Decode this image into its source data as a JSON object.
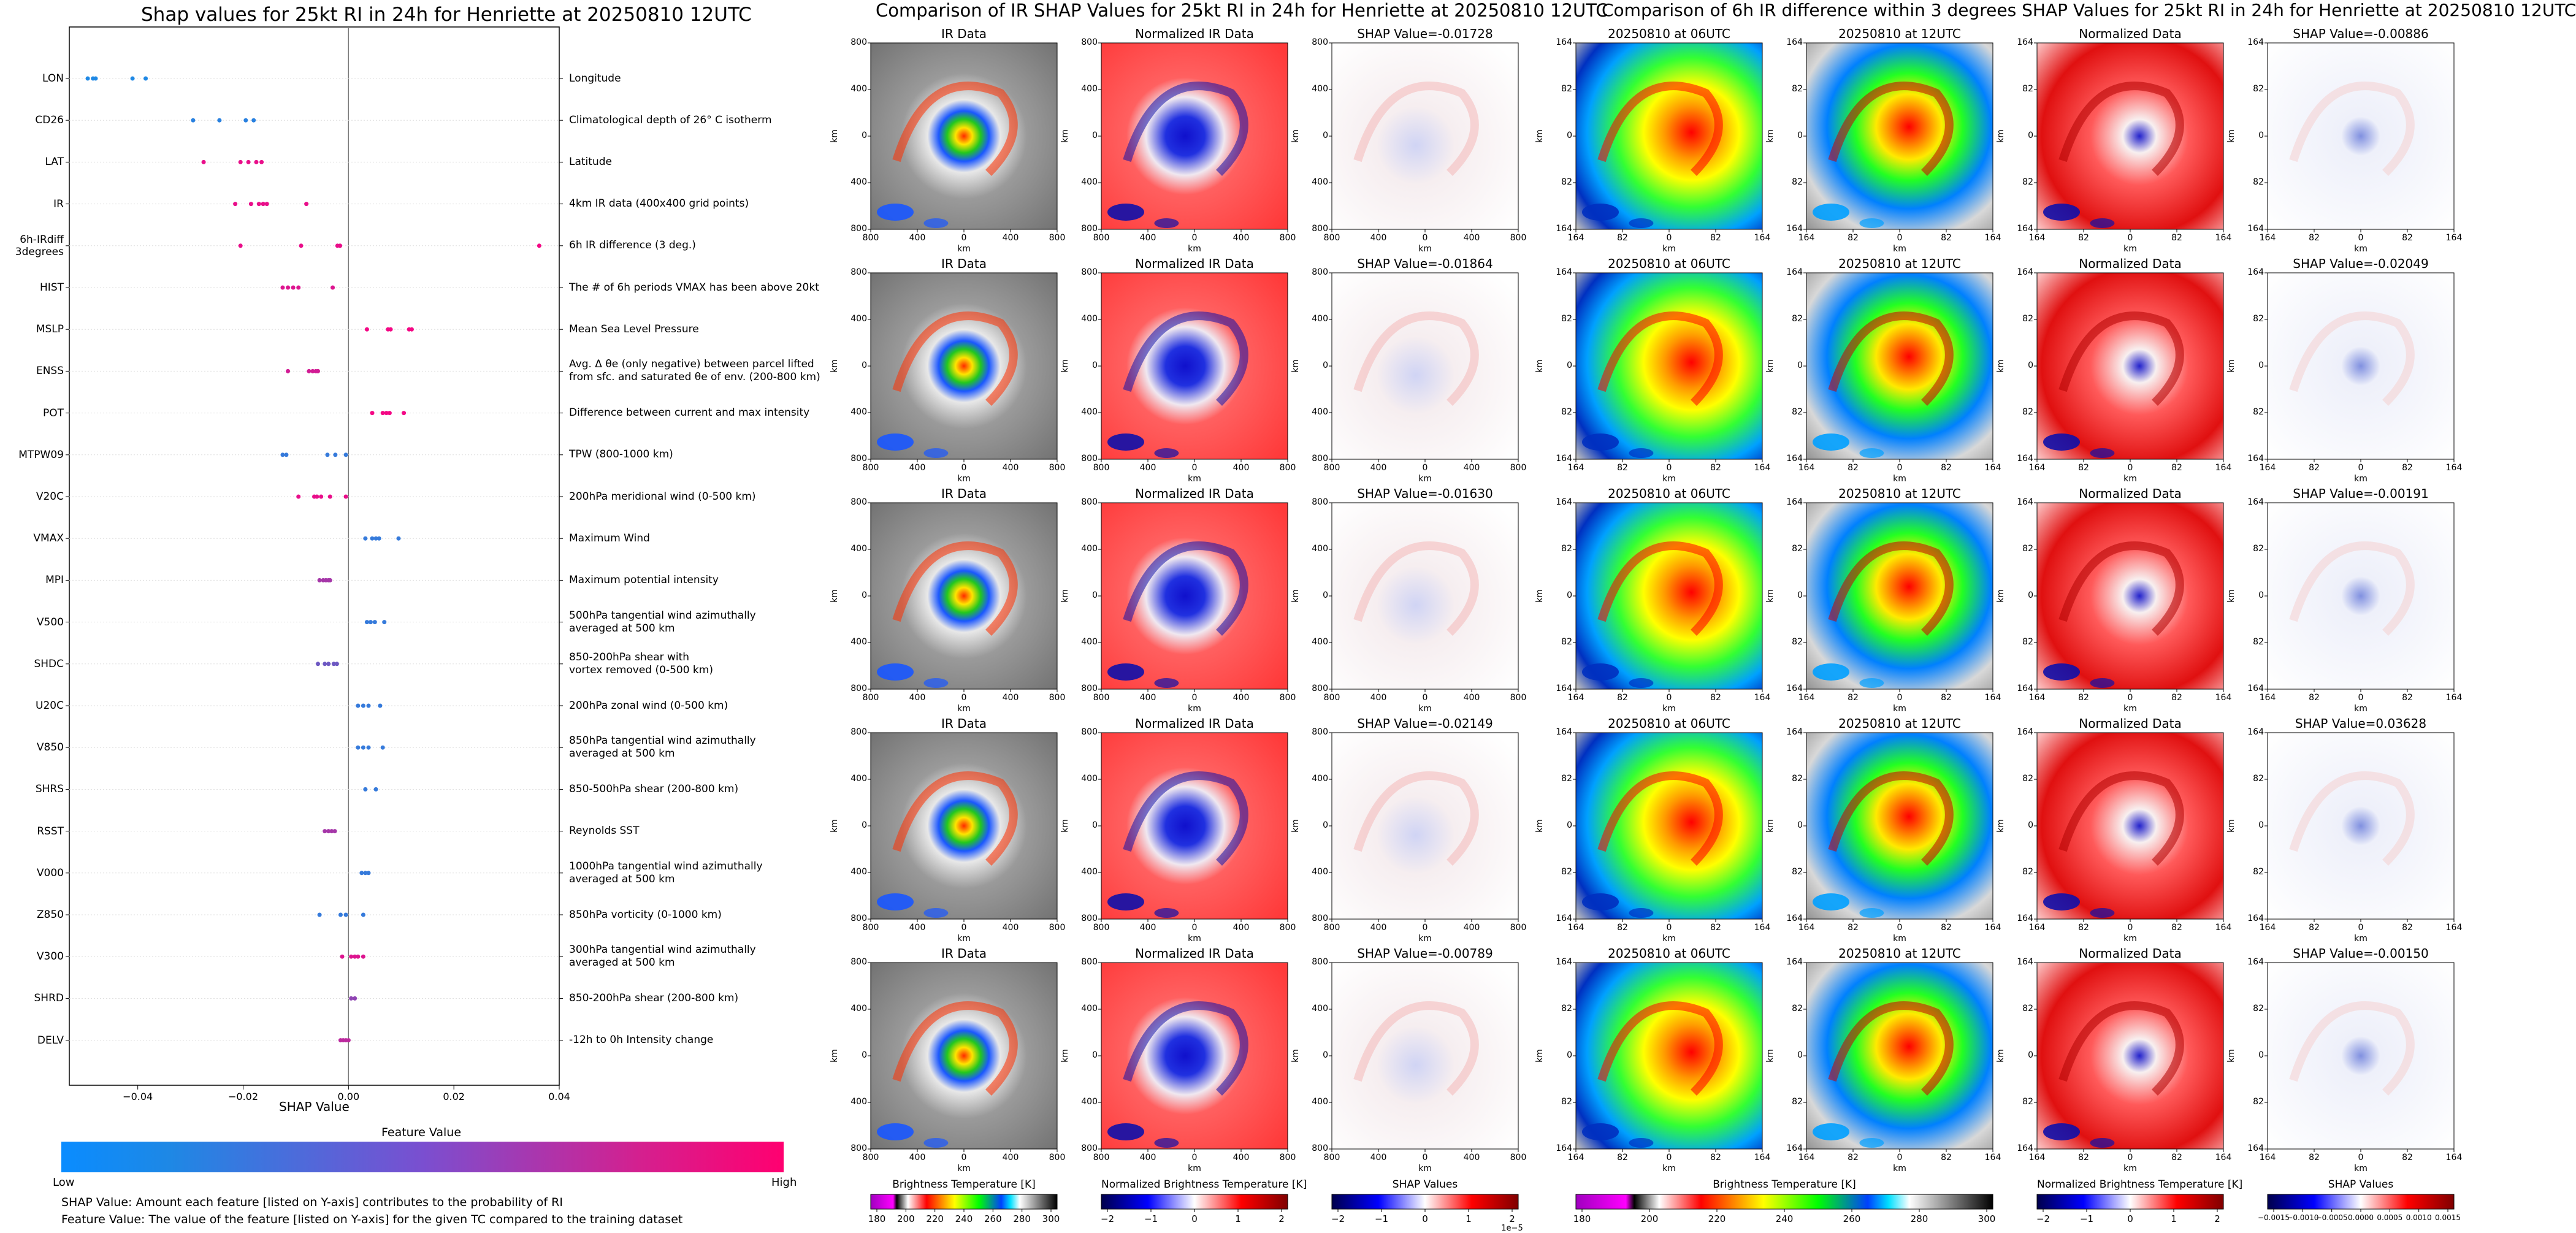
{
  "colors": {
    "low": "#1e88e5",
    "high": "#ff0080"
  },
  "left": {
    "title": "Shap values for 25kt RI in 24h for Henriette at 20250810 12UTC",
    "xlabel": "SHAP Value",
    "xticks": [
      "−0.04",
      "−0.02",
      "0.00",
      "0.02",
      "0.04"
    ],
    "colorbar_title": "Feature Value",
    "colorbar_low": "Low",
    "colorbar_high": "High",
    "notes": [
      "SHAP Value: Amount each feature [listed on Y-axis] contributes to the probability of RI",
      "Feature Value: The value of the feature [listed on Y-axis] for the given TC compared to the training dataset"
    ]
  },
  "mid": {
    "title": "Comparison of IR SHAP Values for 25kt RI in 24h for Henriette at 20250810 12UTC",
    "col_titles": [
      "IR Data",
      "Normalized IR Data"
    ],
    "shap_titles": [
      "SHAP Value=-0.01728",
      "SHAP Value=-0.01864",
      "SHAP Value=-0.01630",
      "SHAP Value=-0.02149",
      "SHAP Value=-0.00789"
    ],
    "yticks": [
      "800",
      "400",
      "0",
      "400",
      "800"
    ],
    "xticks": [
      "800",
      "400",
      "0",
      "400",
      "800"
    ],
    "axis_label": "km",
    "cb1": {
      "title": "Brightness Temperature [K]",
      "ticks": [
        "180",
        "200",
        "220",
        "240",
        "260",
        "280",
        "300"
      ]
    },
    "cb2": {
      "title": "Normalized Brightness Temperature [K]",
      "ticks": [
        "−2",
        "−1",
        "0",
        "1",
        "2"
      ]
    },
    "cb3": {
      "title": "SHAP Values",
      "ticks": [
        "−2",
        "−1",
        "0",
        "1",
        "2"
      ],
      "exponent": "1e−5"
    }
  },
  "right": {
    "title": "Comparison of 6h IR difference within 3 degrees SHAP Values for 25kt RI in 24h for Henriette at 20250810 12UTC",
    "col_titles": [
      "20250810 at 06UTC",
      "20250810 at 12UTC",
      "Normalized Data"
    ],
    "shap_titles": [
      "SHAP Value=-0.00886",
      "SHAP Value=-0.02049",
      "SHAP Value=-0.00191",
      "SHAP Value=0.03628",
      "SHAP Value=-0.00150"
    ],
    "yticks": [
      "164",
      "82",
      "0",
      "82",
      "164"
    ],
    "xticks": [
      "164",
      "82",
      "0",
      "82",
      "164"
    ],
    "axis_label": "km",
    "cb1": {
      "title": "Brightness Temperature [K]",
      "ticks": [
        "180",
        "200",
        "220",
        "240",
        "260",
        "280",
        "300"
      ]
    },
    "cb2": {
      "title": "Normalized Brightness Temperature [K]",
      "ticks": [
        "−2",
        "−1",
        "0",
        "1",
        "2"
      ]
    },
    "cb3": {
      "title": "SHAP Values",
      "ticks": [
        "−0.0015",
        "−0.0010",
        "−0.0005",
        "0.0000",
        "0.0005",
        "0.0010",
        "0.0015"
      ]
    }
  },
  "chart_data": {
    "type": "scatter",
    "title": "Shap values for 25kt RI in 24h for Henriette at 20250810 12UTC",
    "xlabel": "SHAP Value",
    "xlim": [
      -0.053,
      0.04
    ],
    "features": [
      {
        "name": "LON",
        "desc": "Longitude",
        "points": [
          [
            -0.0495,
            0.0
          ],
          [
            -0.0485,
            0.0
          ],
          [
            -0.048,
            0.0
          ],
          [
            -0.041,
            0.0
          ],
          [
            -0.0385,
            0.0
          ]
        ]
      },
      {
        "name": "CD26",
        "desc": "Climatological depth of 26° C isotherm",
        "points": [
          [
            -0.0295,
            0.05
          ],
          [
            -0.0245,
            0.05
          ],
          [
            -0.0195,
            0.05
          ],
          [
            -0.018,
            0.05
          ]
        ]
      },
      {
        "name": "LAT",
        "desc": "Latitude",
        "points": [
          [
            -0.0275,
            0.9
          ],
          [
            -0.0205,
            0.9
          ],
          [
            -0.019,
            0.9
          ],
          [
            -0.0175,
            0.9
          ],
          [
            -0.0165,
            0.9
          ]
        ]
      },
      {
        "name": "IR",
        "desc": "4km IR data (400x400 grid points)",
        "points": [
          [
            -0.0215,
            0.9
          ],
          [
            -0.0185,
            0.9
          ],
          [
            -0.017,
            0.9
          ],
          [
            -0.0162,
            0.9
          ],
          [
            -0.0155,
            0.9
          ],
          [
            -0.008,
            0.9
          ]
        ]
      },
      {
        "name": "6h-IRdiff\n3degrees",
        "desc": "6h IR difference (3 deg.)",
        "points": [
          [
            -0.0205,
            0.9
          ],
          [
            -0.009,
            0.9
          ],
          [
            -0.0021,
            0.9
          ],
          [
            -0.0016,
            0.9
          ],
          [
            0.0362,
            0.95
          ]
        ]
      },
      {
        "name": "HIST",
        "desc": "The # of 6h periods VMAX has been above 20kt",
        "points": [
          [
            -0.0125,
            0.85
          ],
          [
            -0.0115,
            0.85
          ],
          [
            -0.0105,
            0.85
          ],
          [
            -0.0095,
            0.85
          ],
          [
            -0.003,
            0.85
          ]
        ]
      },
      {
        "name": "MSLP",
        "desc": "Mean Sea Level Pressure",
        "points": [
          [
            0.0035,
            0.95
          ],
          [
            0.0075,
            0.95
          ],
          [
            0.008,
            0.95
          ],
          [
            0.0115,
            0.95
          ],
          [
            0.012,
            0.95
          ]
        ]
      },
      {
        "name": "ENSS",
        "desc": "Avg. Δ θe (only negative) between parcel lifted\nfrom sfc. and saturated θe of env. (200-800 km)",
        "points": [
          [
            -0.0115,
            0.8
          ],
          [
            -0.0075,
            0.8
          ],
          [
            -0.0068,
            0.8
          ],
          [
            -0.0062,
            0.8
          ],
          [
            -0.0058,
            0.8
          ]
        ]
      },
      {
        "name": "POT",
        "desc": "Difference between current and max intensity",
        "points": [
          [
            0.0045,
            0.95
          ],
          [
            0.0065,
            0.95
          ],
          [
            0.0072,
            0.95
          ],
          [
            0.0078,
            0.95
          ],
          [
            0.0105,
            0.95
          ]
        ]
      },
      {
        "name": "MTPW09",
        "desc": "TPW (800-1000 km)",
        "points": [
          [
            -0.0125,
            0.1
          ],
          [
            -0.0118,
            0.1
          ],
          [
            -0.004,
            0.1
          ],
          [
            -0.0025,
            0.1
          ],
          [
            -0.0005,
            0.1
          ]
        ]
      },
      {
        "name": "V20C",
        "desc": "200hPa meridional wind (0-500 km)",
        "points": [
          [
            -0.0095,
            0.9
          ],
          [
            -0.0065,
            0.9
          ],
          [
            -0.006,
            0.9
          ],
          [
            -0.0052,
            0.9
          ],
          [
            -0.0035,
            0.9
          ],
          [
            -0.0005,
            0.9
          ]
        ]
      },
      {
        "name": "VMAX",
        "desc": "Maximum Wind",
        "points": [
          [
            0.0032,
            0.1
          ],
          [
            0.0045,
            0.1
          ],
          [
            0.0052,
            0.1
          ],
          [
            0.0058,
            0.1
          ],
          [
            0.0095,
            0.1
          ]
        ]
      },
      {
        "name": "MPI",
        "desc": "Maximum potential intensity",
        "points": [
          [
            -0.0055,
            0.6
          ],
          [
            -0.0048,
            0.6
          ],
          [
            -0.0043,
            0.6
          ],
          [
            -0.0038,
            0.6
          ],
          [
            -0.0035,
            0.6
          ]
        ]
      },
      {
        "name": "V500",
        "desc": "500hPa tangential wind azimuthally\naveraged at 500 km",
        "points": [
          [
            0.0035,
            0.1
          ],
          [
            0.0042,
            0.1
          ],
          [
            0.005,
            0.1
          ],
          [
            0.0068,
            0.1
          ]
        ]
      },
      {
        "name": "SHDC",
        "desc": "850-200hPa shear with\nvortex removed (0-500 km)",
        "points": [
          [
            -0.0058,
            0.35
          ],
          [
            -0.0045,
            0.35
          ],
          [
            -0.0038,
            0.35
          ],
          [
            -0.0028,
            0.35
          ],
          [
            -0.0022,
            0.35
          ]
        ]
      },
      {
        "name": "U20C",
        "desc": "200hPa zonal wind (0-500 km)",
        "points": [
          [
            0.0018,
            0.1
          ],
          [
            0.0028,
            0.1
          ],
          [
            0.0038,
            0.1
          ],
          [
            0.006,
            0.1
          ]
        ]
      },
      {
        "name": "V850",
        "desc": "850hPa tangential wind azimuthally\naveraged at 500 km",
        "points": [
          [
            0.0018,
            0.1
          ],
          [
            0.0028,
            0.1
          ],
          [
            0.0038,
            0.1
          ],
          [
            0.0065,
            0.1
          ]
        ]
      },
      {
        "name": "SHRS",
        "desc": "850-500hPa shear (200-800 km)",
        "points": [
          [
            0.0032,
            0.1
          ],
          [
            0.0052,
            0.1
          ]
        ]
      },
      {
        "name": "RSST",
        "desc": "Reynolds SST",
        "points": [
          [
            -0.0045,
            0.6
          ],
          [
            -0.0038,
            0.6
          ],
          [
            -0.0032,
            0.6
          ],
          [
            -0.0026,
            0.6
          ]
        ]
      },
      {
        "name": "V000",
        "desc": "1000hPa tangential wind azimuthally\naveraged at 500 km",
        "points": [
          [
            0.0025,
            0.1
          ],
          [
            0.0032,
            0.1
          ],
          [
            0.0038,
            0.1
          ]
        ]
      },
      {
        "name": "Z850",
        "desc": "850hPa vorticity (0-1000 km)",
        "points": [
          [
            -0.0055,
            0.1
          ],
          [
            -0.0015,
            0.1
          ],
          [
            -0.0005,
            0.1
          ],
          [
            0.0028,
            0.1
          ]
        ]
      },
      {
        "name": "V300",
        "desc": "300hPa tangential wind azimuthally\naveraged at 500 km",
        "points": [
          [
            -0.0012,
            0.85
          ],
          [
            0.0005,
            0.85
          ],
          [
            0.0012,
            0.85
          ],
          [
            0.0018,
            0.85
          ],
          [
            0.0028,
            0.85
          ]
        ]
      },
      {
        "name": "SHRD",
        "desc": "850-200hPa shear (200-800 km)",
        "points": [
          [
            0.0005,
            0.5
          ],
          [
            0.0012,
            0.5
          ]
        ]
      },
      {
        "name": "DELV",
        "desc": "-12h to 0h Intensity change",
        "points": [
          [
            -0.0015,
            0.7
          ],
          [
            -0.001,
            0.7
          ],
          [
            -0.0005,
            0.7
          ],
          [
            0.0,
            0.7
          ]
        ]
      }
    ]
  }
}
